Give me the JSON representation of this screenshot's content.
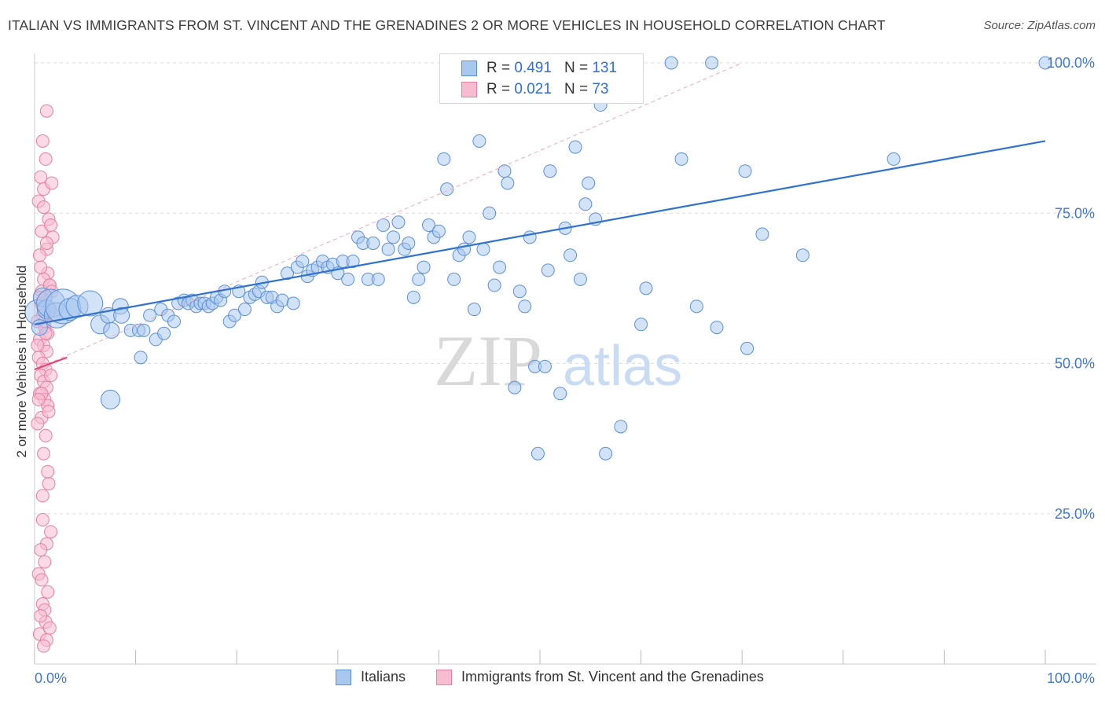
{
  "title": "ITALIAN VS IMMIGRANTS FROM ST. VINCENT AND THE GRENADINES 2 OR MORE VEHICLES IN HOUSEHOLD CORRELATION CHART",
  "source": "Source: ZipAtlas.com",
  "watermark": {
    "zip": "ZIP",
    "atlas": "atlas"
  },
  "legend": {
    "rows": [
      {
        "r_label": "R =",
        "r_value": "0.491",
        "n_label": "N =",
        "n_value": "131"
      },
      {
        "r_label": "R =",
        "r_value": "0.021",
        "n_label": "N =",
        "n_value": "73"
      }
    ]
  },
  "bottom_legend": [
    "Italians",
    "Immigrants from St. Vincent and the Grenadines"
  ],
  "colors": {
    "blue_fill": "#a8c8f0",
    "blue_stroke": "#5b8fd6",
    "blue_line": "#2f72d0",
    "pink_fill": "#f8bcd0",
    "pink_stroke": "#e77fa3",
    "pink_line": "#e0457a",
    "grid": "#dddddd",
    "tick_text": "#3f78d2"
  },
  "chart_data": {
    "type": "scatter",
    "title": "ITALIAN VS IMMIGRANTS FROM ST. VINCENT AND THE GRENADINES 2 OR MORE VEHICLES IN HOUSEHOLD CORRELATION CHART",
    "xlabel": "",
    "ylabel": "2 or more Vehicles in Household",
    "xlim": [
      0,
      100
    ],
    "ylim": [
      0,
      102
    ],
    "x_tick_labels": [
      "0.0%",
      "100.0%"
    ],
    "y_tick_values": [
      25,
      50,
      75,
      100
    ],
    "y_tick_labels": [
      "25.0%",
      "50.0%",
      "75.0%",
      "100.0%"
    ],
    "grid": true,
    "legend_position": "top-center",
    "series": [
      {
        "name": "Italians",
        "color": "#a8c8f0",
        "points": [
          [
            0.3,
            58.5,
            16
          ],
          [
            0.5,
            56,
            10
          ],
          [
            0.8,
            61,
            12
          ],
          [
            1.2,
            59,
            12
          ],
          [
            1.6,
            60,
            18
          ],
          [
            2.2,
            58,
            16
          ],
          [
            2.8,
            59.5,
            22
          ],
          [
            3.5,
            59,
            14
          ],
          [
            4.2,
            59.5,
            14
          ],
          [
            5.5,
            60,
            16
          ],
          [
            6.5,
            56.5,
            12
          ],
          [
            7.3,
            58,
            10
          ],
          [
            7.5,
            44,
            12
          ],
          [
            7.6,
            55.5,
            10
          ],
          [
            8.5,
            59.5,
            10
          ],
          [
            8.6,
            58,
            10
          ],
          [
            9.5,
            55.5,
            8
          ],
          [
            10.3,
            55.5,
            8
          ],
          [
            10.5,
            51,
            8
          ],
          [
            10.8,
            55.5,
            8
          ],
          [
            11.4,
            58,
            8
          ],
          [
            12,
            54,
            8
          ],
          [
            12.5,
            59,
            8
          ],
          [
            12.8,
            55,
            8
          ],
          [
            13.2,
            58,
            8
          ],
          [
            13.8,
            57,
            8
          ],
          [
            14.2,
            60,
            8
          ],
          [
            14.8,
            60.5,
            8
          ],
          [
            15.2,
            60,
            8
          ],
          [
            15.6,
            60.5,
            8
          ],
          [
            16,
            59.5,
            8
          ],
          [
            16.4,
            60,
            8
          ],
          [
            16.8,
            60,
            8
          ],
          [
            17.2,
            59.5,
            8
          ],
          [
            17.6,
            60,
            8
          ],
          [
            18,
            61,
            8
          ],
          [
            18.4,
            60.5,
            8
          ],
          [
            18.8,
            62,
            8
          ],
          [
            19.3,
            57,
            8
          ],
          [
            19.8,
            58,
            8
          ],
          [
            20.2,
            62,
            8
          ],
          [
            20.8,
            59,
            8
          ],
          [
            21.3,
            61,
            8
          ],
          [
            21.8,
            61.5,
            8
          ],
          [
            22.2,
            62,
            8
          ],
          [
            22.5,
            63.5,
            8
          ],
          [
            23,
            61,
            8
          ],
          [
            23.5,
            61,
            8
          ],
          [
            24,
            59.5,
            8
          ],
          [
            24.5,
            60.5,
            8
          ],
          [
            25,
            65,
            8
          ],
          [
            25.6,
            60,
            8
          ],
          [
            26,
            66,
            8
          ],
          [
            26.5,
            67,
            8
          ],
          [
            27,
            64.5,
            8
          ],
          [
            27.5,
            65.5,
            8
          ],
          [
            28,
            66,
            8
          ],
          [
            28.5,
            67,
            8
          ],
          [
            29,
            66,
            8
          ],
          [
            29.5,
            66.5,
            8
          ],
          [
            30,
            65,
            8
          ],
          [
            30.5,
            67,
            8
          ],
          [
            31,
            64,
            8
          ],
          [
            31.5,
            67,
            8
          ],
          [
            32,
            71,
            8
          ],
          [
            32.5,
            70,
            8
          ],
          [
            33,
            64,
            8
          ],
          [
            33.5,
            70,
            8
          ],
          [
            34,
            64,
            8
          ],
          [
            34.5,
            73,
            8
          ],
          [
            35,
            69,
            8
          ],
          [
            35.5,
            71,
            8
          ],
          [
            36,
            73.5,
            8
          ],
          [
            36.6,
            69,
            8
          ],
          [
            37,
            70,
            8
          ],
          [
            37.5,
            61,
            8
          ],
          [
            38,
            64,
            8
          ],
          [
            38.5,
            66,
            8
          ],
          [
            39,
            73,
            8
          ],
          [
            39.5,
            71,
            8
          ],
          [
            40,
            72,
            8
          ],
          [
            40.5,
            84,
            8
          ],
          [
            40.8,
            79,
            8
          ],
          [
            41.5,
            64,
            8
          ],
          [
            42,
            68,
            8
          ],
          [
            42.5,
            69,
            8
          ],
          [
            43,
            71,
            8
          ],
          [
            43.5,
            59,
            8
          ],
          [
            44,
            87,
            8
          ],
          [
            44.4,
            69,
            8
          ],
          [
            45,
            75,
            8
          ],
          [
            45.5,
            63,
            8
          ],
          [
            46,
            66,
            8
          ],
          [
            46.5,
            82,
            8
          ],
          [
            46.8,
            80,
            8
          ],
          [
            47.5,
            46,
            8
          ],
          [
            48,
            62,
            8
          ],
          [
            48.5,
            59.5,
            8
          ],
          [
            49,
            71,
            8
          ],
          [
            49.5,
            49.5,
            8
          ],
          [
            49.8,
            35,
            8
          ],
          [
            50.5,
            49.5,
            8
          ],
          [
            50.8,
            65.5,
            8
          ],
          [
            51,
            82,
            8
          ],
          [
            52,
            45,
            8
          ],
          [
            52.5,
            72.5,
            8
          ],
          [
            53,
            68,
            8
          ],
          [
            53.5,
            86,
            8
          ],
          [
            54,
            64,
            8
          ],
          [
            54.5,
            76.5,
            8
          ],
          [
            54.8,
            80,
            8
          ],
          [
            55.5,
            74,
            8
          ],
          [
            56,
            93,
            8
          ],
          [
            56.5,
            35,
            8
          ],
          [
            58,
            39.5,
            8
          ],
          [
            60,
            56.5,
            8
          ],
          [
            60.5,
            62.5,
            8
          ],
          [
            63,
            100,
            8
          ],
          [
            64,
            84,
            8
          ],
          [
            65.5,
            59.5,
            8
          ],
          [
            67,
            100,
            8
          ],
          [
            67.5,
            56,
            8
          ],
          [
            70.3,
            82,
            8
          ],
          [
            70.5,
            52.5,
            8
          ],
          [
            72,
            71.5,
            8
          ],
          [
            76,
            68,
            8
          ],
          [
            85,
            84,
            8
          ],
          [
            100,
            100,
            8
          ],
          [
            44.5,
            100,
            8
          ],
          [
            46,
            100,
            8
          ]
        ]
      },
      {
        "name": "Immigrants from St. Vincent and the Grenadines",
        "color": "#f8bcd0",
        "points": [
          [
            1.2,
            92,
            8
          ],
          [
            0.8,
            87,
            8
          ],
          [
            1.1,
            84,
            8
          ],
          [
            0.6,
            81,
            8
          ],
          [
            0.9,
            79,
            8
          ],
          [
            0.4,
            77,
            8
          ],
          [
            1.4,
            74,
            8
          ],
          [
            0.7,
            72,
            8
          ],
          [
            1.6,
            73,
            8
          ],
          [
            1.2,
            69,
            8
          ],
          [
            0.5,
            68,
            8
          ],
          [
            1.3,
            65,
            8
          ],
          [
            0.9,
            64,
            8
          ],
          [
            1.5,
            63,
            8
          ],
          [
            0.7,
            62,
            8
          ],
          [
            1.1,
            61,
            8
          ],
          [
            0.6,
            60,
            8
          ],
          [
            1.4,
            59,
            8
          ],
          [
            0.8,
            58,
            8
          ],
          [
            0.3,
            57,
            8
          ],
          [
            1.0,
            56,
            8
          ],
          [
            1.3,
            55,
            8
          ],
          [
            0.5,
            54,
            8
          ],
          [
            0.9,
            53,
            8
          ],
          [
            1.2,
            52,
            8
          ],
          [
            0.4,
            51,
            8
          ],
          [
            0.8,
            50,
            8
          ],
          [
            1.1,
            49,
            8
          ],
          [
            0.6,
            48,
            8
          ],
          [
            0.9,
            47,
            8
          ],
          [
            1.2,
            46,
            8
          ],
          [
            0.5,
            45,
            8
          ],
          [
            1.0,
            44,
            8
          ],
          [
            1.3,
            43,
            8
          ],
          [
            0.7,
            41,
            8
          ],
          [
            1.1,
            38,
            8
          ],
          [
            0.9,
            35,
            8
          ],
          [
            1.4,
            30,
            8
          ],
          [
            0.8,
            28,
            8
          ],
          [
            1.2,
            20,
            8
          ],
          [
            0.6,
            19,
            8
          ],
          [
            1.0,
            17,
            8
          ],
          [
            0.4,
            15,
            8
          ],
          [
            1.3,
            12,
            8
          ],
          [
            0.8,
            10,
            8
          ],
          [
            1.1,
            7,
            8
          ],
          [
            0.5,
            5,
            8
          ],
          [
            1.2,
            4,
            8
          ],
          [
            0.9,
            3,
            8
          ],
          [
            1.5,
            63,
            8
          ],
          [
            1.7,
            62,
            8
          ],
          [
            0.6,
            66,
            8
          ],
          [
            1.0,
            57,
            8
          ],
          [
            0.3,
            53,
            8
          ],
          [
            1.6,
            48,
            8
          ],
          [
            0.7,
            45,
            8
          ],
          [
            1.4,
            42,
            8
          ],
          [
            0.3,
            40,
            8
          ],
          [
            1.8,
            71,
            8
          ],
          [
            0.5,
            61,
            8
          ],
          [
            1.2,
            70,
            8
          ],
          [
            0.9,
            76,
            8
          ],
          [
            1.7,
            80,
            8
          ],
          [
            1.1,
            55,
            8
          ],
          [
            0.4,
            44,
            8
          ],
          [
            1.3,
            32,
            8
          ],
          [
            0.8,
            24,
            8
          ],
          [
            1.6,
            22,
            8
          ],
          [
            0.7,
            14,
            8
          ],
          [
            1.0,
            9,
            8
          ],
          [
            1.5,
            6,
            8
          ],
          [
            0.6,
            8,
            8
          ],
          [
            1.9,
            58,
            8
          ]
        ]
      }
    ],
    "trend_lines": [
      {
        "series": "Italians",
        "x": [
          0,
          100
        ],
        "y": [
          56.5,
          87
        ]
      },
      {
        "series": "Immigrants from St. Vincent and the Grenadines",
        "x": [
          0,
          3.2
        ],
        "y": [
          49,
          51
        ]
      }
    ],
    "diagonal_reference": {
      "x": [
        0,
        70
      ],
      "y": [
        49,
        100
      ]
    }
  }
}
